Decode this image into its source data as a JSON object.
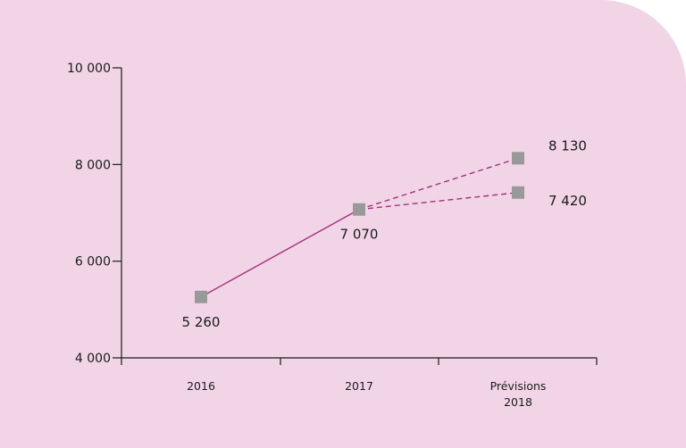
{
  "chart_data": {
    "type": "line",
    "title": "",
    "xlabel": "",
    "ylabel": "",
    "ylim": [
      4000,
      10000
    ],
    "yticks": [
      {
        "value": 4000,
        "label": "4 000"
      },
      {
        "value": 6000,
        "label": "6 000"
      },
      {
        "value": 8000,
        "label": "8 000"
      },
      {
        "value": 10000,
        "label": "10 000"
      }
    ],
    "categories": [
      {
        "label": "2016",
        "lines": [
          "2016"
        ]
      },
      {
        "label": "2017",
        "lines": [
          "2017"
        ]
      },
      {
        "label": "Prévisions 2018",
        "lines": [
          "Prévisions",
          "2018"
        ]
      }
    ],
    "series": [
      {
        "style": "solid",
        "values": [
          5260,
          7070,
          null
        ]
      },
      {
        "style": "dashed",
        "values": [
          null,
          7070,
          8130
        ]
      },
      {
        "style": "dashed",
        "values": [
          null,
          7070,
          7420
        ]
      }
    ],
    "points": [
      {
        "category": 0,
        "value": 5260,
        "label": "5 260",
        "label_position": "below"
      },
      {
        "category": 1,
        "value": 7070,
        "label": "7 070",
        "label_position": "below"
      },
      {
        "category": 2,
        "value": 8130,
        "label": "8 130",
        "label_position": "right"
      },
      {
        "category": 2,
        "value": 7420,
        "label": "7 420",
        "label_position": "right"
      }
    ],
    "grid": false,
    "colors": {
      "background": "#f1d5e7",
      "line": "#a4307a",
      "marker": "#999999",
      "axis": "#1a1a1a"
    }
  }
}
